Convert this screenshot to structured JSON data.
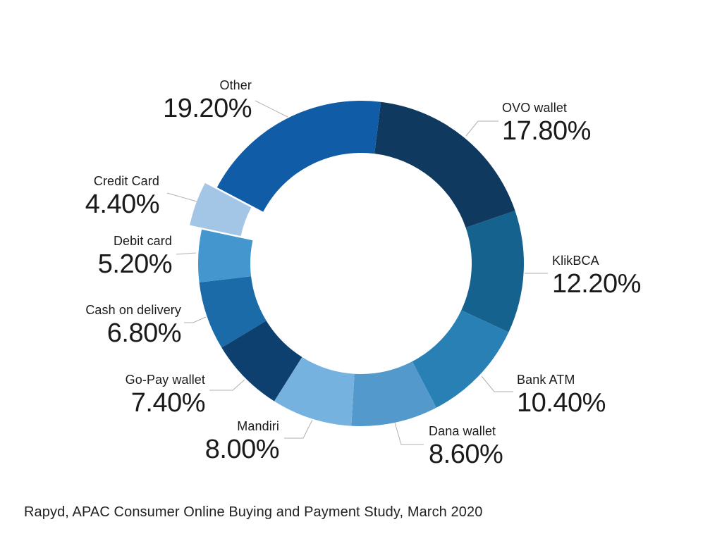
{
  "footer": {
    "source": "Rapyd, APAC Consumer Online Buying and Payment Study, March 2020"
  },
  "styles": {
    "background": "#FFFFFF",
    "text_color": "#1A1A1A",
    "leader_line_color": "#B0B0B0"
  },
  "chart_data": {
    "type": "pie",
    "subtype": "donut",
    "title": "",
    "unit": "%",
    "legend_position": "none",
    "slices": [
      {
        "name": "OVO wallet",
        "value": 17.8,
        "pct_label": "17.80%",
        "color": "#0F395E",
        "exploded": false
      },
      {
        "name": "KlikBCA",
        "value": 12.2,
        "pct_label": "12.20%",
        "color": "#16628E",
        "exploded": false
      },
      {
        "name": "Bank ATM",
        "value": 10.4,
        "pct_label": "10.40%",
        "color": "#2980B4",
        "exploded": false
      },
      {
        "name": "Dana wallet",
        "value": 8.6,
        "pct_label": "8.60%",
        "color": "#5499CC",
        "exploded": false
      },
      {
        "name": "Mandiri",
        "value": 8.0,
        "pct_label": "8.00%",
        "color": "#76B2E0",
        "exploded": false
      },
      {
        "name": "Go-Pay wallet",
        "value": 7.4,
        "pct_label": "7.40%",
        "color": "#0D406E",
        "exploded": false
      },
      {
        "name": "Cash on delivery",
        "value": 6.8,
        "pct_label": "6.80%",
        "color": "#1B6BA8",
        "exploded": false
      },
      {
        "name": "Debit card",
        "value": 5.2,
        "pct_label": "5.20%",
        "color": "#4497CE",
        "exploded": false
      },
      {
        "name": "Credit Card",
        "value": 4.4,
        "pct_label": "4.40%",
        "color": "#A4C6E6",
        "exploded": true
      },
      {
        "name": "Other",
        "value": 19.2,
        "pct_label": "19.20%",
        "color": "#105CA6",
        "exploded": false
      }
    ],
    "layout": {
      "direction": "clockwise",
      "start_angle_deg": 7,
      "donut": true
    }
  }
}
